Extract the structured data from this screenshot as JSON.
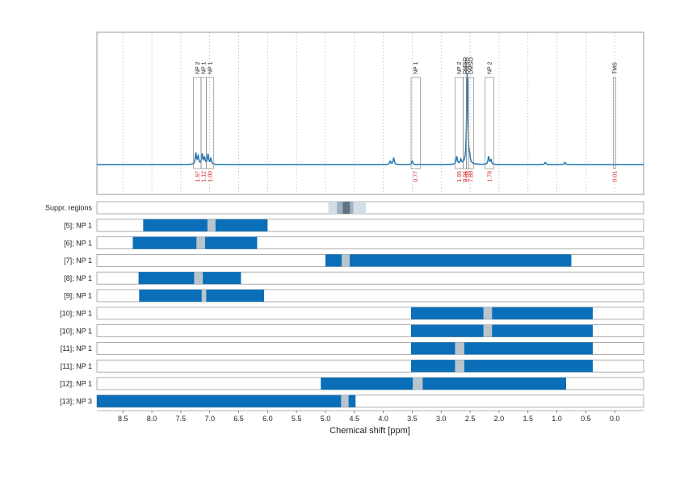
{
  "chart_data": {
    "type": "nmr-spectrum-with-range-bars",
    "xlabel": "Chemical shift [ppm]",
    "x_reversed": true,
    "xlim": [
      8.95,
      -0.5
    ],
    "x_ticks": [
      8.5,
      8.0,
      7.5,
      7.0,
      6.5,
      6.0,
      5.5,
      5.0,
      4.5,
      4.0,
      3.5,
      3.0,
      2.5,
      2.0,
      1.5,
      1.0,
      0.5,
      0.0
    ],
    "x_tick_labels": [
      "8.5",
      "8.0",
      "7.5",
      "7.0",
      "6.5",
      "6.0",
      "5.5",
      "5.0",
      "4.5",
      "4.0",
      "3.5",
      "3.0",
      "2.5",
      "2.0",
      "1.5",
      "1.0",
      "0.5",
      "0.0"
    ],
    "grid": true,
    "colors": {
      "spectrum": "#1f77b4",
      "bar": "#0a6eb8",
      "gap": "#b9c4cc",
      "integral": "#d62728",
      "frame": "#999999"
    },
    "spectrum_peaks": [
      {
        "x": 7.24,
        "h": 0.1
      },
      {
        "x": 7.2,
        "h": 0.07
      },
      {
        "x": 7.13,
        "h": 0.09
      },
      {
        "x": 7.09,
        "h": 0.06
      },
      {
        "x": 7.03,
        "h": 0.09
      },
      {
        "x": 6.98,
        "h": 0.05
      },
      {
        "x": 3.82,
        "h": 0.06
      },
      {
        "x": 3.88,
        "h": 0.03
      },
      {
        "x": 3.5,
        "h": 0.03
      },
      {
        "x": 2.73,
        "h": 0.07
      },
      {
        "x": 2.66,
        "h": 0.04
      },
      {
        "x": 2.55,
        "h": 0.8
      },
      {
        "x": 2.51,
        "h": 0.05
      },
      {
        "x": 2.18,
        "h": 0.07
      },
      {
        "x": 2.14,
        "h": 0.04
      },
      {
        "x": 1.2,
        "h": 0.02
      },
      {
        "x": 0.86,
        "h": 0.02
      }
    ],
    "peak_regions": [
      {
        "label": "NP 2",
        "from": 7.28,
        "to": 7.15,
        "integral": "1.97"
      },
      {
        "label": "NP 1",
        "from": 7.15,
        "to": 7.06,
        "integral": "1.12"
      },
      {
        "label": "NP 1",
        "from": 7.06,
        "to": 6.93,
        "integral": "1.00"
      },
      {
        "label": "NP 1",
        "from": 3.52,
        "to": 3.36,
        "integral": "0.77"
      },
      {
        "label": "NP 2",
        "from": 2.76,
        "to": 2.62,
        "integral": "1.95"
      },
      {
        "label": "DMSO",
        "from": 2.62,
        "to": 2.565,
        "integral": "0.04"
      },
      {
        "label": "DMSO",
        "from": 2.565,
        "to": 2.53,
        "integral": "2.08"
      },
      {
        "label": "DMSO",
        "from": 2.53,
        "to": 2.44,
        "integral": "7.88"
      },
      {
        "label": "NP 2",
        "from": 2.24,
        "to": 2.09,
        "integral": "1.78"
      },
      {
        "label": "TMS",
        "from": 0.025,
        "to": -0.015,
        "integral": "0.01"
      }
    ],
    "suppression": {
      "label": "Suppr. regions",
      "outer": [
        4.95,
        4.3
      ],
      "inner": [
        4.8,
        4.52
      ],
      "core": [
        4.7,
        4.58
      ]
    },
    "range_rows": [
      {
        "label": "[5]; NP 1",
        "from": 8.15,
        "to": 6.0,
        "gap": [
          7.04,
          6.9
        ]
      },
      {
        "label": "[6]; NP 1",
        "from": 8.33,
        "to": 6.18,
        "gap": [
          7.23,
          7.08
        ]
      },
      {
        "label": "[7]; NP 1",
        "from": 5.0,
        "to": 0.75,
        "gap": [
          4.72,
          4.58
        ]
      },
      {
        "label": "[8]; NP 1",
        "from": 8.23,
        "to": 6.46,
        "gap": [
          7.27,
          7.12
        ]
      },
      {
        "label": "[9]; NP 1",
        "from": 8.22,
        "to": 6.06,
        "gap": [
          7.14,
          7.06
        ]
      },
      {
        "label": "[10]; NP 1",
        "from": 3.52,
        "to": 0.38,
        "gap": [
          2.27,
          2.12
        ]
      },
      {
        "label": "[10]; NP 1",
        "from": 3.52,
        "to": 0.38,
        "gap": [
          2.27,
          2.12
        ]
      },
      {
        "label": "[11]; NP 1",
        "from": 3.52,
        "to": 0.38,
        "gap": [
          2.76,
          2.6
        ]
      },
      {
        "label": "[11]; NP 1",
        "from": 3.52,
        "to": 0.38,
        "gap": [
          2.76,
          2.6
        ]
      },
      {
        "label": "[12]; NP 1",
        "from": 5.08,
        "to": 0.84,
        "gap": [
          3.49,
          3.32
        ]
      },
      {
        "label": "[13]; NP 3",
        "from": 8.95,
        "to": 4.48,
        "gap": [
          4.73,
          4.6
        ]
      }
    ]
  }
}
